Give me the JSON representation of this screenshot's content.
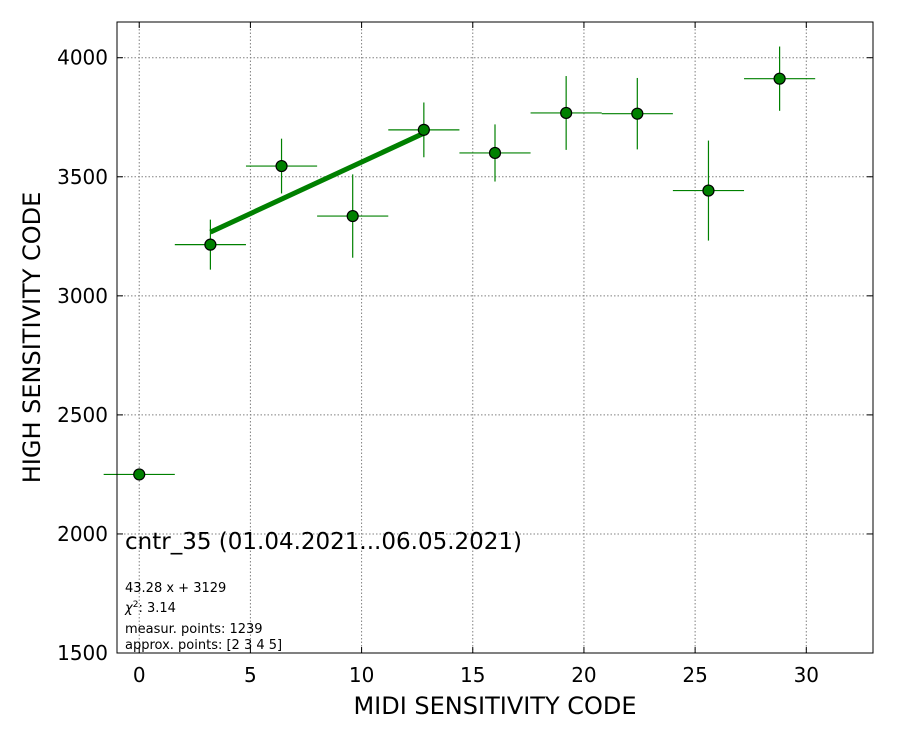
{
  "chart_data": {
    "type": "scatter",
    "title": "",
    "xlabel": "MIDI SENSITIVITY CODE",
    "ylabel": "HIGH SENSITIVITY CODE",
    "xlim": [
      -1,
      33
    ],
    "ylim": [
      1500,
      4150
    ],
    "grid": true,
    "xticks": [
      0,
      5,
      10,
      15,
      20,
      25,
      30
    ],
    "yticks": [
      1500,
      2000,
      2500,
      3000,
      3500,
      4000
    ],
    "colors": {
      "marker_fill": "#008000",
      "marker_edge": "#000000",
      "errorbar": "#008000",
      "fit_line": "#008000",
      "grid": "#808080"
    },
    "points": [
      {
        "x": 0.0,
        "y": 2250,
        "xerr": 1.6,
        "yerr": 0
      },
      {
        "x": 3.2,
        "y": 3215,
        "xerr": 1.6,
        "yerr": 105
      },
      {
        "x": 6.4,
        "y": 3545,
        "xerr": 1.6,
        "yerr": 115
      },
      {
        "x": 9.6,
        "y": 3335,
        "xerr": 1.6,
        "yerr": 175
      },
      {
        "x": 12.8,
        "y": 3697,
        "xerr": 1.6,
        "yerr": 115
      },
      {
        "x": 16.0,
        "y": 3600,
        "xerr": 1.6,
        "yerr": 120
      },
      {
        "x": 19.2,
        "y": 3768,
        "xerr": 1.6,
        "yerr": 155
      },
      {
        "x": 22.4,
        "y": 3765,
        "xerr": 1.6,
        "yerr": 150
      },
      {
        "x": 25.6,
        "y": 3442,
        "xerr": 1.6,
        "yerr": 210
      },
      {
        "x": 28.8,
        "y": 3912,
        "xerr": 1.6,
        "yerr": 135
      }
    ],
    "fit": {
      "slope": 43.28,
      "intercept": 3129,
      "x_range": [
        3.2,
        12.8
      ]
    },
    "annotations": {
      "main": "cntr_35 (01.04.2021...06.05.2021)",
      "equation": "43.28 x + 3129",
      "chi2_symbol": "χ",
      "chi2_sup": "2",
      "chi2_value": ": 3.14",
      "measur": "measur. points: 1239",
      "approx": "approx. points: [2 3 4 5]"
    }
  }
}
